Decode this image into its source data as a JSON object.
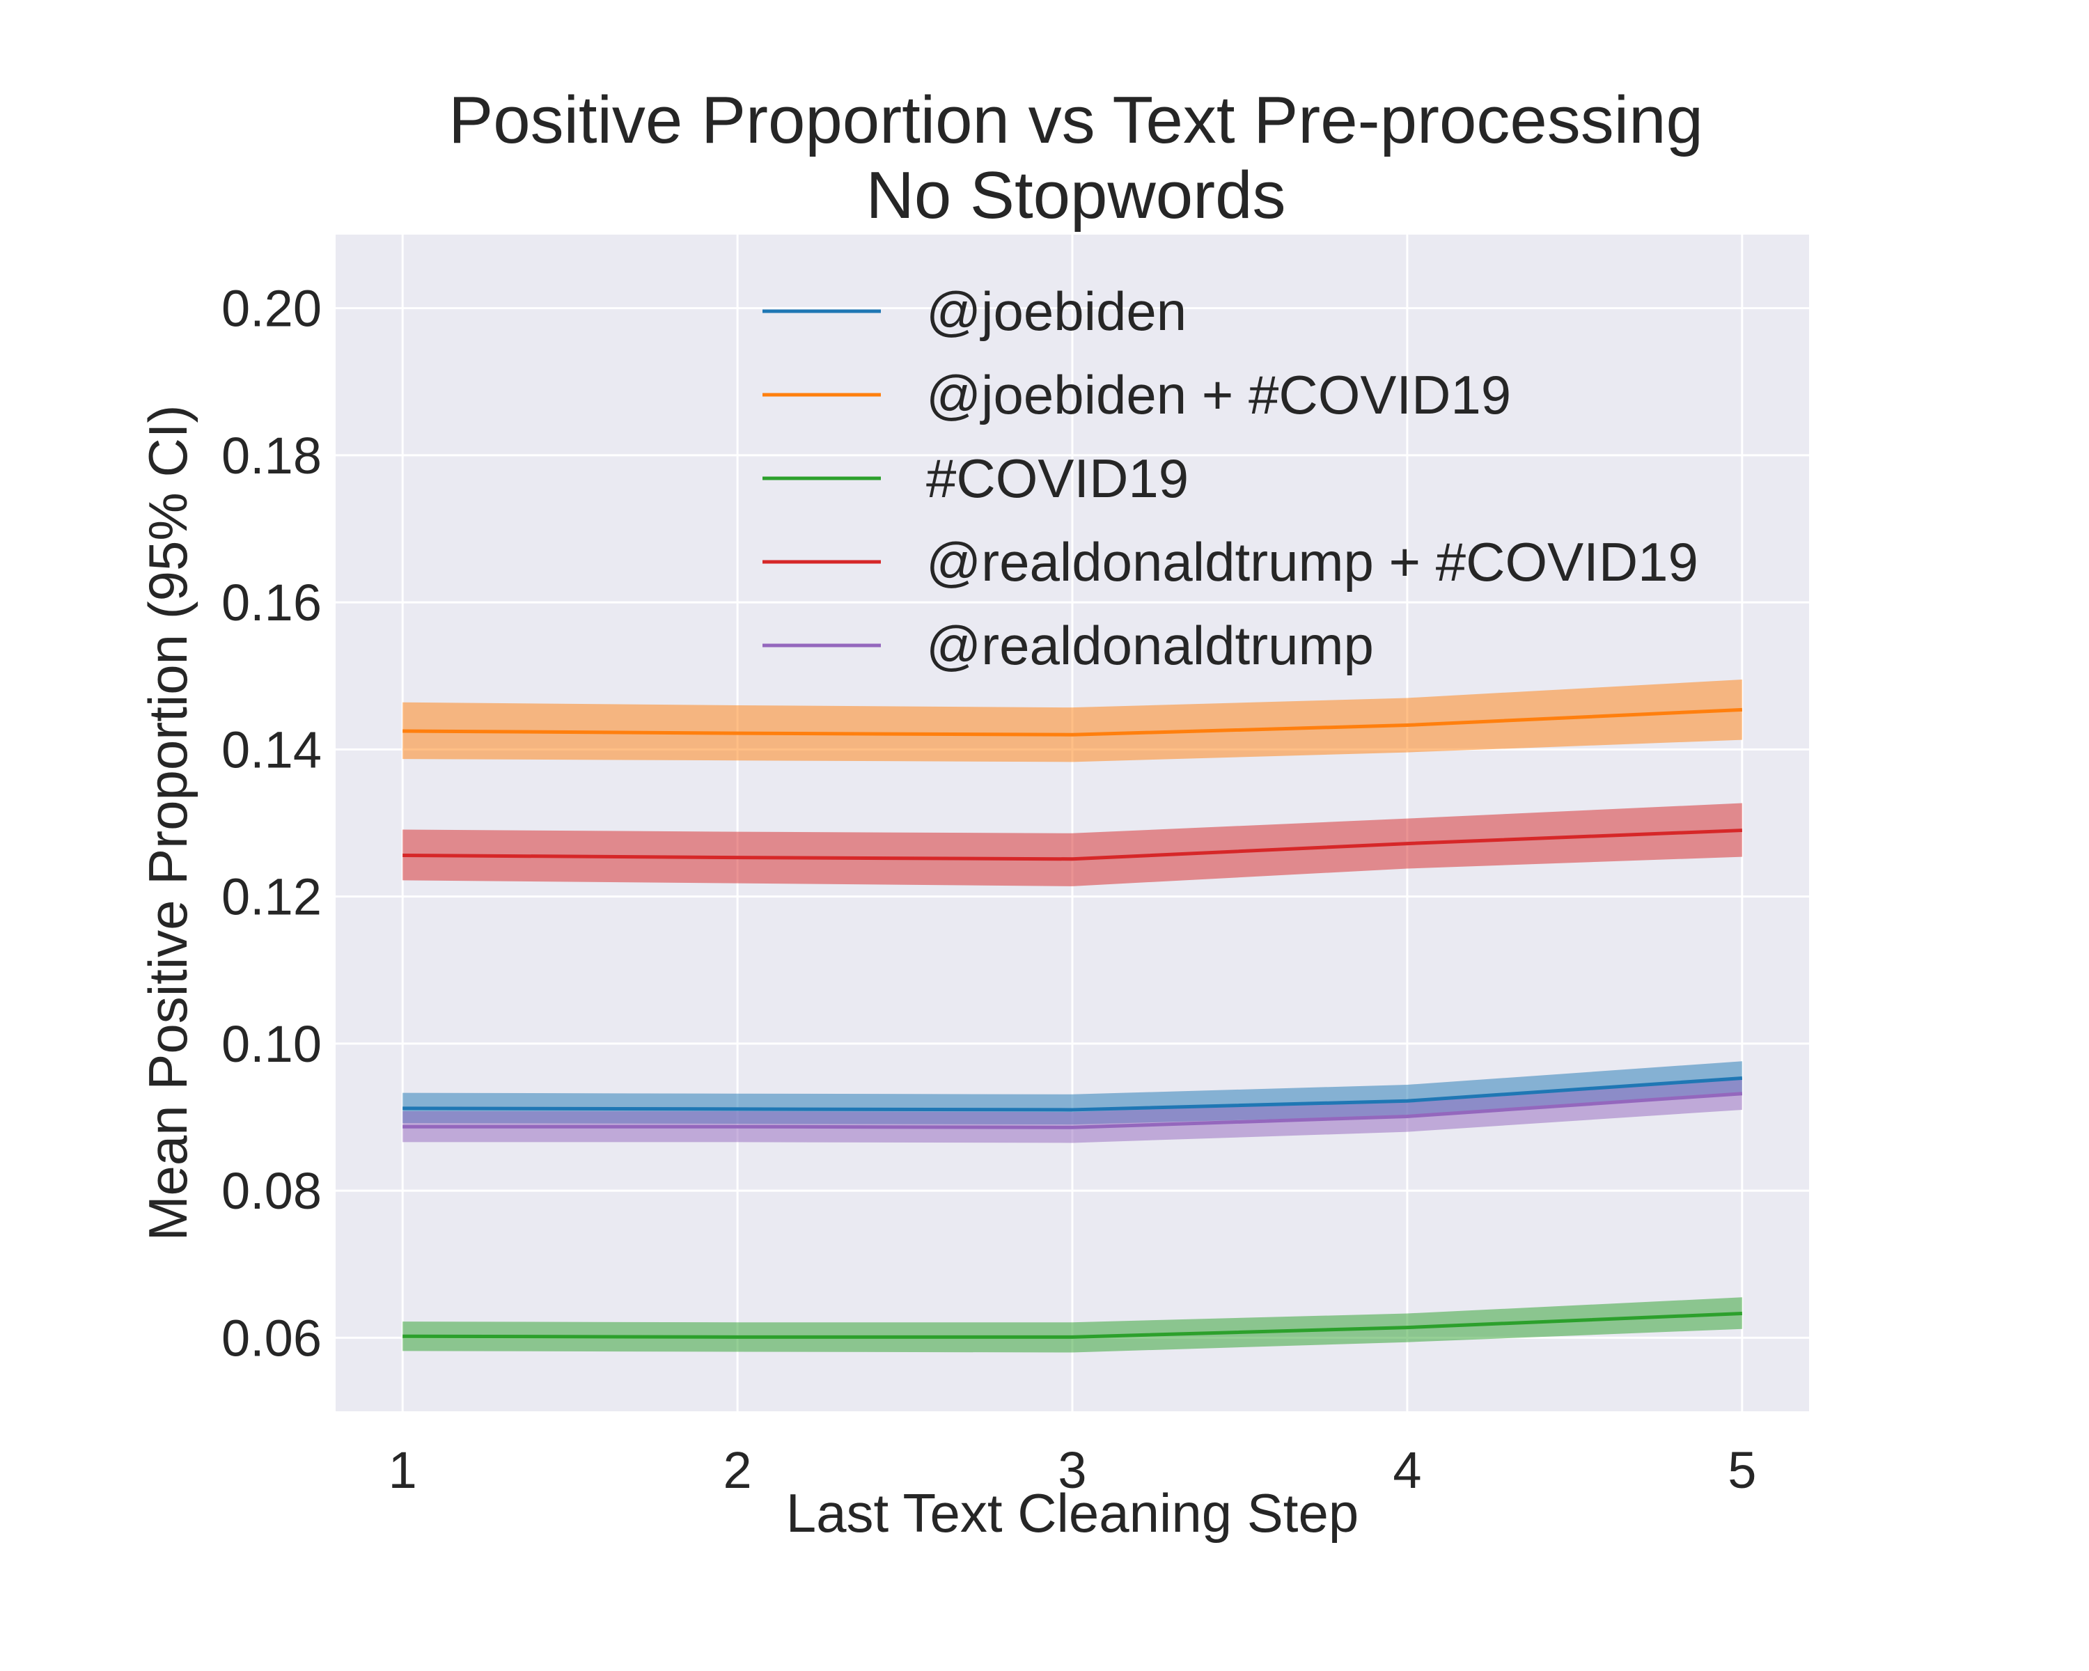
{
  "chart_data": {
    "type": "line",
    "title": "Positive Proportion vs Text Pre-processing",
    "subtitle": "No Stopwords",
    "xlabel": "Last Text Cleaning Step",
    "ylabel": "Mean Positive Proportion (95% CI)",
    "x": [
      1,
      2,
      3,
      4,
      5
    ],
    "xlim": [
      0.8,
      5.2
    ],
    "ylim": [
      0.05,
      0.21
    ],
    "xticks": [
      "1",
      "2",
      "3",
      "4",
      "5"
    ],
    "yticks": [
      "0.06",
      "0.08",
      "0.10",
      "0.12",
      "0.14",
      "0.16",
      "0.18",
      "0.20"
    ],
    "grid": true,
    "legend_position": "upper-center",
    "series": [
      {
        "name": "@joebiden",
        "color": "#1f77b4",
        "values": [
          0.0912,
          0.0911,
          0.091,
          0.0922,
          0.0953
        ],
        "ci_low": [
          0.0892,
          0.0891,
          0.089,
          0.0902,
          0.093
        ],
        "ci_high": [
          0.0933,
          0.0932,
          0.0931,
          0.0944,
          0.0976
        ]
      },
      {
        "name": "@joebiden + #COVID19",
        "color": "#ff7f0e",
        "values": [
          0.1425,
          0.1422,
          0.142,
          0.1433,
          0.1454
        ],
        "ci_low": [
          0.1387,
          0.1385,
          0.1383,
          0.1396,
          0.1413
        ],
        "ci_high": [
          0.1464,
          0.146,
          0.1457,
          0.147,
          0.1495
        ]
      },
      {
        "name": "#COVID19",
        "color": "#2ca02c",
        "values": [
          0.0602,
          0.0601,
          0.0601,
          0.0614,
          0.0633
        ],
        "ci_low": [
          0.0582,
          0.0581,
          0.058,
          0.0594,
          0.0612
        ],
        "ci_high": [
          0.0622,
          0.0621,
          0.0621,
          0.0633,
          0.0655
        ]
      },
      {
        "name": "@realdonaldtrump + #COVID19",
        "color": "#d62728",
        "values": [
          0.1256,
          0.1253,
          0.1251,
          0.1272,
          0.129
        ],
        "ci_low": [
          0.1222,
          0.1218,
          0.1214,
          0.1238,
          0.1254
        ],
        "ci_high": [
          0.1291,
          0.1288,
          0.1286,
          0.1306,
          0.1327
        ]
      },
      {
        "name": "@realdonaldtrump",
        "color": "#9467bd",
        "values": [
          0.0887,
          0.0887,
          0.0886,
          0.0901,
          0.0932
        ],
        "ci_low": [
          0.0866,
          0.0866,
          0.0865,
          0.088,
          0.091
        ],
        "ci_high": [
          0.0908,
          0.0908,
          0.0907,
          0.0922,
          0.0953
        ]
      }
    ]
  },
  "colors": {
    "plot_background": "#eaeaf2",
    "grid": "#ffffff",
    "text": "#262626"
  }
}
